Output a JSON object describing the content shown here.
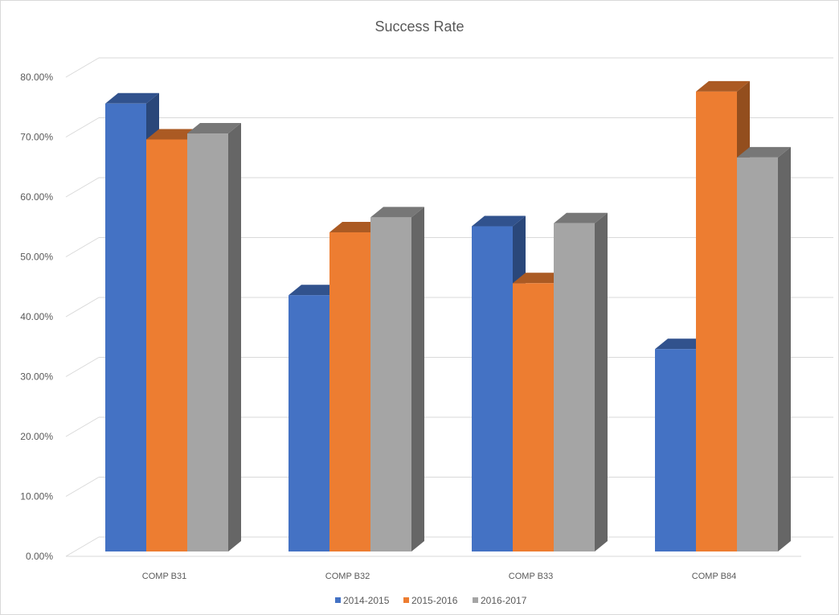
{
  "chart_data": {
    "type": "bar",
    "title": "Success Rate",
    "categories": [
      "COMP B31",
      "COMP B32",
      "COMP B33",
      "COMP B84"
    ],
    "series": [
      {
        "name": "2014-2015",
        "values": [
          76.0,
          44.0,
          55.5,
          35.0
        ],
        "color": "#4472C4"
      },
      {
        "name": "2015-2016",
        "values": [
          70.0,
          54.5,
          46.0,
          78.0
        ],
        "color": "#ED7D31"
      },
      {
        "name": "2016-2017",
        "values": [
          71.0,
          57.0,
          56.0,
          67.0
        ],
        "color": "#A5A5A5"
      }
    ],
    "yticks": [
      "0.00%",
      "10.00%",
      "20.00%",
      "30.00%",
      "40.00%",
      "50.00%",
      "60.00%",
      "70.00%",
      "80.00%"
    ],
    "ylim": [
      0,
      80
    ],
    "grid": true,
    "legend_position": "bottom",
    "style": "3d-clustered-column"
  }
}
